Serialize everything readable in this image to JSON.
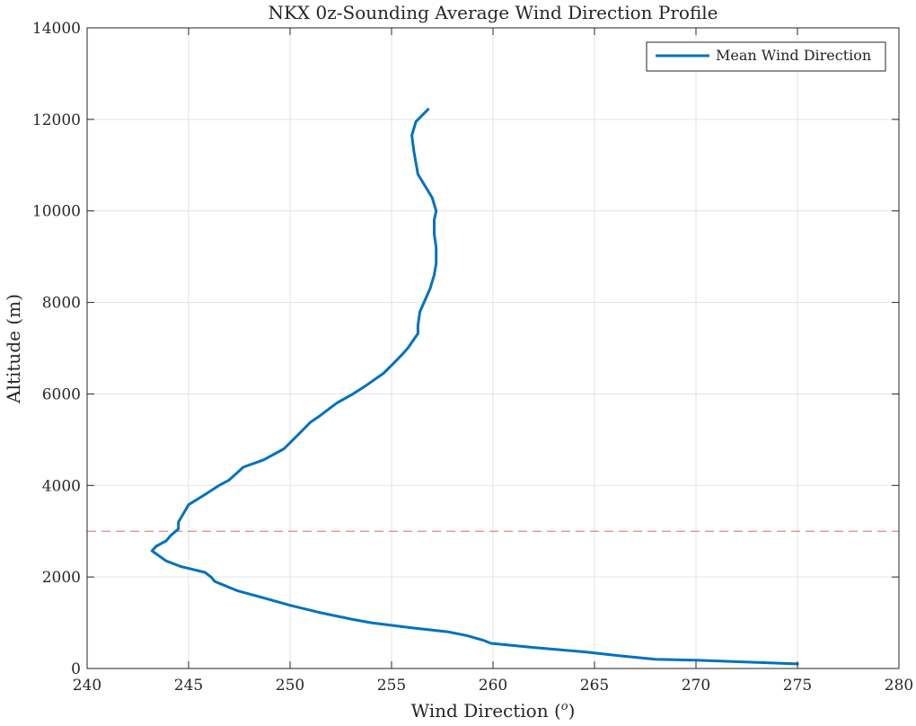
{
  "chart_data": {
    "type": "line",
    "title": "NKX 0z-Sounding Average Wind Direction Profile",
    "xlabel": "Wind Direction (",
    "xlabel_sup": "o",
    "xlabel_close": ")",
    "ylabel": "Altitude (m)",
    "xlim": [
      240,
      280
    ],
    "ylim": [
      0,
      14000
    ],
    "x_ticks": [
      240,
      245,
      250,
      255,
      260,
      265,
      270,
      275,
      280
    ],
    "y_ticks": [
      0,
      2000,
      4000,
      6000,
      8000,
      10000,
      12000,
      14000
    ],
    "grid": true,
    "legend_position": "top-right",
    "reference_line": {
      "y": 3000,
      "color": "#e06666",
      "style": "dashed"
    },
    "series": [
      {
        "name": "Mean Wind Direction",
        "color": "#0072BD",
        "points": [
          [
            275.0,
            100
          ],
          [
            270.0,
            180
          ],
          [
            268.0,
            200
          ],
          [
            266.2,
            280
          ],
          [
            264.6,
            360
          ],
          [
            262.0,
            460
          ],
          [
            259.9,
            550
          ],
          [
            259.5,
            620
          ],
          [
            258.7,
            720
          ],
          [
            257.8,
            800
          ],
          [
            257.0,
            840
          ],
          [
            256.0,
            890
          ],
          [
            254.0,
            1000
          ],
          [
            253.0,
            1080
          ],
          [
            251.5,
            1220
          ],
          [
            250.0,
            1380
          ],
          [
            248.8,
            1530
          ],
          [
            247.4,
            1700
          ],
          [
            246.3,
            1900
          ],
          [
            246.1,
            2000
          ],
          [
            245.8,
            2100
          ],
          [
            244.6,
            2230
          ],
          [
            243.9,
            2350
          ],
          [
            243.2,
            2570
          ],
          [
            243.4,
            2670
          ],
          [
            243.9,
            2790
          ],
          [
            244.1,
            2900
          ],
          [
            244.5,
            3050
          ],
          [
            244.5,
            3200
          ],
          [
            244.7,
            3350
          ],
          [
            245.0,
            3580
          ],
          [
            245.8,
            3800
          ],
          [
            246.5,
            4000
          ],
          [
            247.0,
            4120
          ],
          [
            247.7,
            4400
          ],
          [
            248.7,
            4560
          ],
          [
            249.7,
            4800
          ],
          [
            250.1,
            4980
          ],
          [
            250.6,
            5200
          ],
          [
            251.0,
            5380
          ],
          [
            251.4,
            5500
          ],
          [
            252.3,
            5800
          ],
          [
            253.1,
            6000
          ],
          [
            253.8,
            6200
          ],
          [
            254.6,
            6450
          ],
          [
            255.1,
            6670
          ],
          [
            255.5,
            6850
          ],
          [
            255.8,
            7000
          ],
          [
            256.3,
            7320
          ],
          [
            256.3,
            7500
          ],
          [
            256.4,
            7800
          ],
          [
            256.7,
            8100
          ],
          [
            256.9,
            8300
          ],
          [
            257.1,
            8600
          ],
          [
            257.2,
            8850
          ],
          [
            257.2,
            9200
          ],
          [
            257.1,
            9500
          ],
          [
            257.1,
            9800
          ],
          [
            257.2,
            10000
          ],
          [
            257.0,
            10290
          ],
          [
            256.3,
            10800
          ],
          [
            256.1,
            11300
          ],
          [
            256.0,
            11650
          ],
          [
            256.2,
            11950
          ],
          [
            256.8,
            12220
          ]
        ]
      }
    ]
  }
}
